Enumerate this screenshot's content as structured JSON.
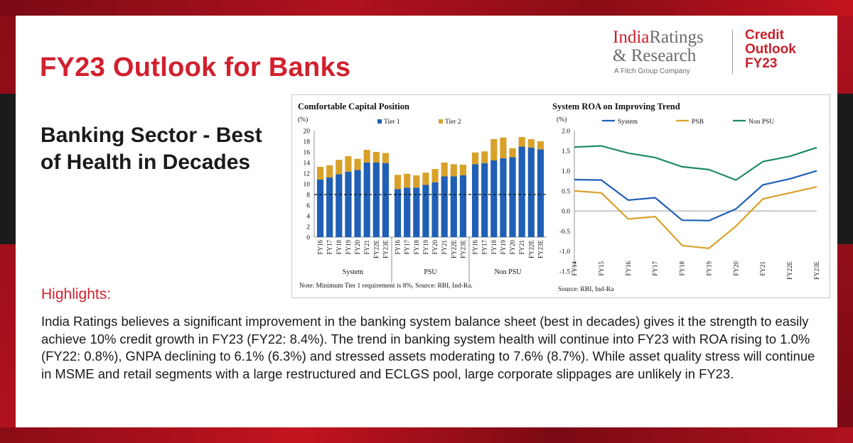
{
  "page": {
    "title": "FY23 Outlook for Banks",
    "subheading": "Banking Sector - Best of Health in Decades",
    "highlights_title": "Highlights:",
    "highlights_body": "India Ratings believes a significant improvement in the banking system balance sheet (best in decades) gives it the strength to easily achieve 10% credit growth in FY23 (FY22: 8.4%). The trend in banking system health will continue into FY23 with ROA rising to 1.0% (FY22: 0.8%), GNPA declining to 6.1% (6.3%) and stressed assets moderating to 7.6% (8.7%). While asset quality stress will continue in MSME and retail segments with a large restructured and ECLGS pool, large corporate slippages are unlikely in FY23."
  },
  "logo": {
    "name_line1": "IndiaRatings",
    "name_line2": "& Research",
    "sub": "A Fitch Group Company",
    "tag_line1": "Credit",
    "tag_line2": "Outlook",
    "tag_line3": "FY23"
  },
  "colors": {
    "accent": "#d1202e",
    "tier1": "#1f5fb5",
    "tier2": "#d9a12a",
    "system": "#1f5fb5",
    "psb": "#d9a12a",
    "nonpsu": "#1e8a66"
  },
  "chart_data": [
    {
      "type": "bar",
      "stacked": true,
      "title": "Comfortable Capital Position",
      "ylabel": "(%)",
      "ylim": [
        0,
        20
      ],
      "yticks": [
        0,
        2,
        4,
        6,
        8,
        10,
        12,
        14,
        16,
        18,
        20
      ],
      "reference_line": {
        "value": 8,
        "style": "dashed"
      },
      "groups": [
        "System",
        "PSU",
        "Non PSU"
      ],
      "categories": [
        "FY16",
        "FY17",
        "FY18",
        "FY19",
        "FY20",
        "FY21",
        "FY22E",
        "FY23E"
      ],
      "series": [
        {
          "name": "Tier 1",
          "values": [
            [
              10.8,
              11.2,
              11.8,
              12.3,
              12.6,
              14.0,
              14.0,
              13.9
            ],
            [
              9.0,
              9.3,
              9.3,
              9.8,
              10.3,
              11.4,
              11.4,
              11.6
            ],
            [
              13.7,
              13.9,
              14.4,
              14.8,
              15.0,
              17.0,
              16.8,
              16.5
            ]
          ]
        },
        {
          "name": "Tier 2",
          "values": [
            [
              2.4,
              2.3,
              2.7,
              2.9,
              2.1,
              2.4,
              2.0,
              1.9
            ],
            [
              2.7,
              2.6,
              2.3,
              2.3,
              2.5,
              2.6,
              2.3,
              2.0
            ],
            [
              2.2,
              2.2,
              4.0,
              3.9,
              1.7,
              1.8,
              1.6,
              1.5
            ]
          ]
        }
      ],
      "note": "Note: Minimum Tier 1 requirement is 8%, Source: RBI, Ind-Ra."
    },
    {
      "type": "line",
      "title": "System ROA on Improving Trend",
      "ylabel": "(%)",
      "ylim": [
        -1.5,
        2.0
      ],
      "yticks": [
        "-1.5",
        "-1.0",
        "-0.5",
        "0.0",
        "0.5",
        "1.0",
        "1.5",
        "2.0"
      ],
      "x": [
        "FY14",
        "FY15",
        "FY16",
        "FY17",
        "FY18",
        "FY19",
        "FY20",
        "FY21",
        "FY22E",
        "FY23E"
      ],
      "series": [
        {
          "name": "System",
          "values": [
            0.78,
            0.77,
            0.27,
            0.33,
            -0.23,
            -0.24,
            0.05,
            0.65,
            0.8,
            1.0
          ]
        },
        {
          "name": "PSB",
          "values": [
            0.5,
            0.45,
            -0.2,
            -0.14,
            -0.86,
            -0.93,
            -0.38,
            0.3,
            0.45,
            0.6
          ]
        },
        {
          "name": "Non PSU",
          "values": [
            1.59,
            1.62,
            1.44,
            1.33,
            1.1,
            1.03,
            0.77,
            1.23,
            1.36,
            1.58
          ]
        }
      ],
      "source": "Source: RBI, Ind-Ra"
    }
  ]
}
